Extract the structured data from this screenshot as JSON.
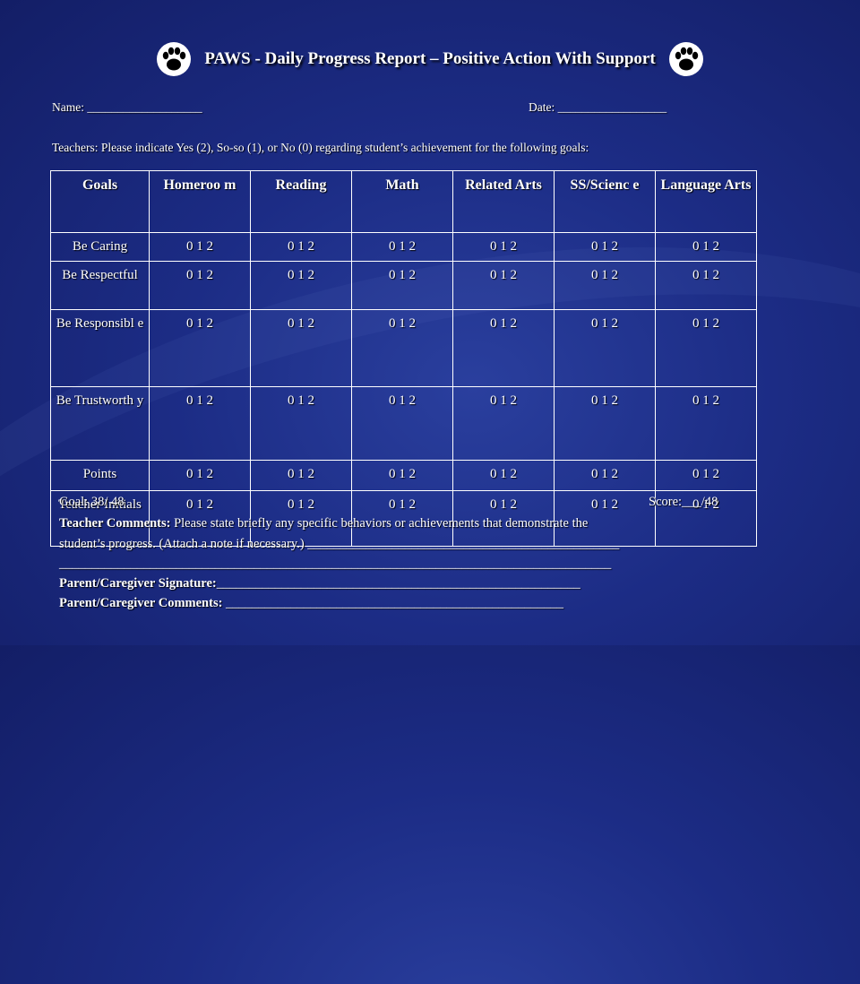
{
  "header": {
    "title": "PAWS - Daily Progress Report – Positive Action With Support"
  },
  "form": {
    "name_label": "Name: ___________________",
    "date_label": "Date: __________________",
    "instructions": "Teachers: Please indicate Yes (2), So-so (1), or No (0) regarding student’s achievement for the following goals:"
  },
  "table": {
    "headers": [
      "Goals",
      "Homeroom",
      "Reading",
      "Math",
      "Related Arts",
      "SS/Science",
      "Language Arts"
    ],
    "header_display": [
      "Goals",
      "Homeroo m",
      "Reading",
      "Math",
      "Related Arts",
      "SS/Scienc e",
      "Language Arts"
    ],
    "rows": [
      {
        "goal": "Be Caring",
        "cells": [
          "0 1 2",
          "0 1 2",
          "0 1 2",
          "0 1 2",
          "0 1 2",
          "0 1 2"
        ]
      },
      {
        "goal": "Be Respectful",
        "cells": [
          "0 1 2",
          "0 1 2",
          "0 1 2",
          "0 1 2",
          "0 1 2",
          "0 1 2"
        ]
      },
      {
        "goal": "Be Responsible",
        "cells": [
          "0 1 2",
          "0 1 2",
          "0 1 2",
          "0 1 2",
          "0 1 2",
          "0 1 2"
        ]
      },
      {
        "goal": "Be Trustworthy",
        "cells": [
          "0 1 2",
          "0 1 2",
          "0 1 2",
          "0 1 2",
          "0 1 2",
          "0 1 2"
        ]
      },
      {
        "goal": "Points",
        "cells": [
          "0 1 2",
          "0 1 2",
          "0 1 2",
          "0 1 2",
          "0 1 2",
          "0 1 2"
        ]
      },
      {
        "goal": "Teacher Initials",
        "cells": [
          "0 1 2",
          "0 1 2",
          "0 1 2",
          "0 1 2",
          "0 1 2",
          "0 1 2"
        ]
      }
    ],
    "goal_display": [
      "Be Caring",
      "Be Respectful",
      "Be Responsibl e",
      "Be Trustworth y",
      "Points",
      "Teacher Initials"
    ]
  },
  "footer": {
    "goal_label": "Goal: 38/ 48",
    "score_label": "Score:___/48",
    "comments_bold": "Teacher Comments:",
    "comments_text": " Please state briefly any specific behaviors or achievements that demonstrate the",
    "comments_line2": "student’s progress. (Attach a note if  necessary.) ________________________________________________",
    "blank_line": "_____________________________________________________________________________________",
    "signature_label": "Parent/Caregiver Signature:",
    "signature_line": "________________________________________________________",
    "parent_comments_label": "Parent/Caregiver Comments:",
    "parent_comments_line": " ____________________________________________________"
  },
  "colors": {
    "background": "#1c2c85",
    "text": "#ffffff"
  },
  "icons": [
    "paw-print-icon"
  ]
}
